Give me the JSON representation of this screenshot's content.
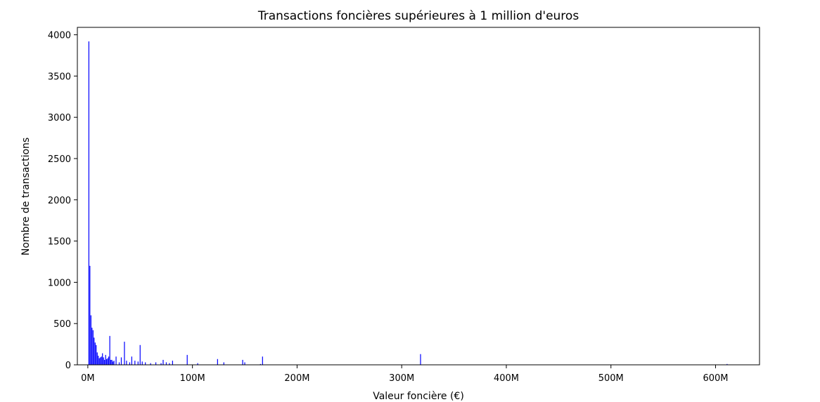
{
  "chart_data": {
    "type": "bar",
    "title": "Transactions foncières supérieures à 1 million d'euros",
    "xlabel": "Valeur foncière (€)",
    "ylabel": "Nombre de transactions",
    "x_unit": "M€",
    "xlim": [
      -10,
      642
    ],
    "ylim": [
      0,
      4090
    ],
    "xticks": [
      0,
      100,
      200,
      300,
      400,
      500,
      600
    ],
    "xtick_labels": [
      "0M",
      "100M",
      "200M",
      "300M",
      "400M",
      "500M",
      "600M"
    ],
    "yticks": [
      0,
      500,
      1000,
      1500,
      2000,
      2500,
      3000,
      3500,
      4000
    ],
    "ytick_labels": [
      "0",
      "500",
      "1000",
      "1500",
      "2000",
      "2500",
      "3000",
      "3500",
      "4000"
    ],
    "bar_color": "#0000ff",
    "grid": false,
    "legend": false,
    "series": [
      {
        "x": [
          1,
          2,
          3,
          4,
          5,
          6,
          7,
          8,
          9,
          10,
          11,
          12,
          13,
          14,
          15,
          16,
          17,
          18,
          19,
          20,
          21,
          22,
          23,
          24,
          25,
          27,
          30,
          32,
          35,
          37,
          40,
          42,
          45,
          48,
          50,
          52,
          55,
          60,
          65,
          70,
          72,
          75,
          78,
          81,
          95,
          105,
          124,
          130,
          148,
          150,
          165,
          167,
          318,
          611
        ],
        "values": [
          3920,
          1200,
          600,
          450,
          420,
          330,
          270,
          240,
          150,
          110,
          80,
          90,
          100,
          140,
          90,
          60,
          120,
          70,
          80,
          100,
          350,
          60,
          60,
          40,
          50,
          100,
          30,
          90,
          280,
          50,
          30,
          100,
          50,
          40,
          240,
          40,
          30,
          20,
          30,
          20,
          60,
          30,
          20,
          50,
          120,
          20,
          70,
          30,
          60,
          30,
          10,
          100,
          130,
          10
        ]
      }
    ]
  }
}
